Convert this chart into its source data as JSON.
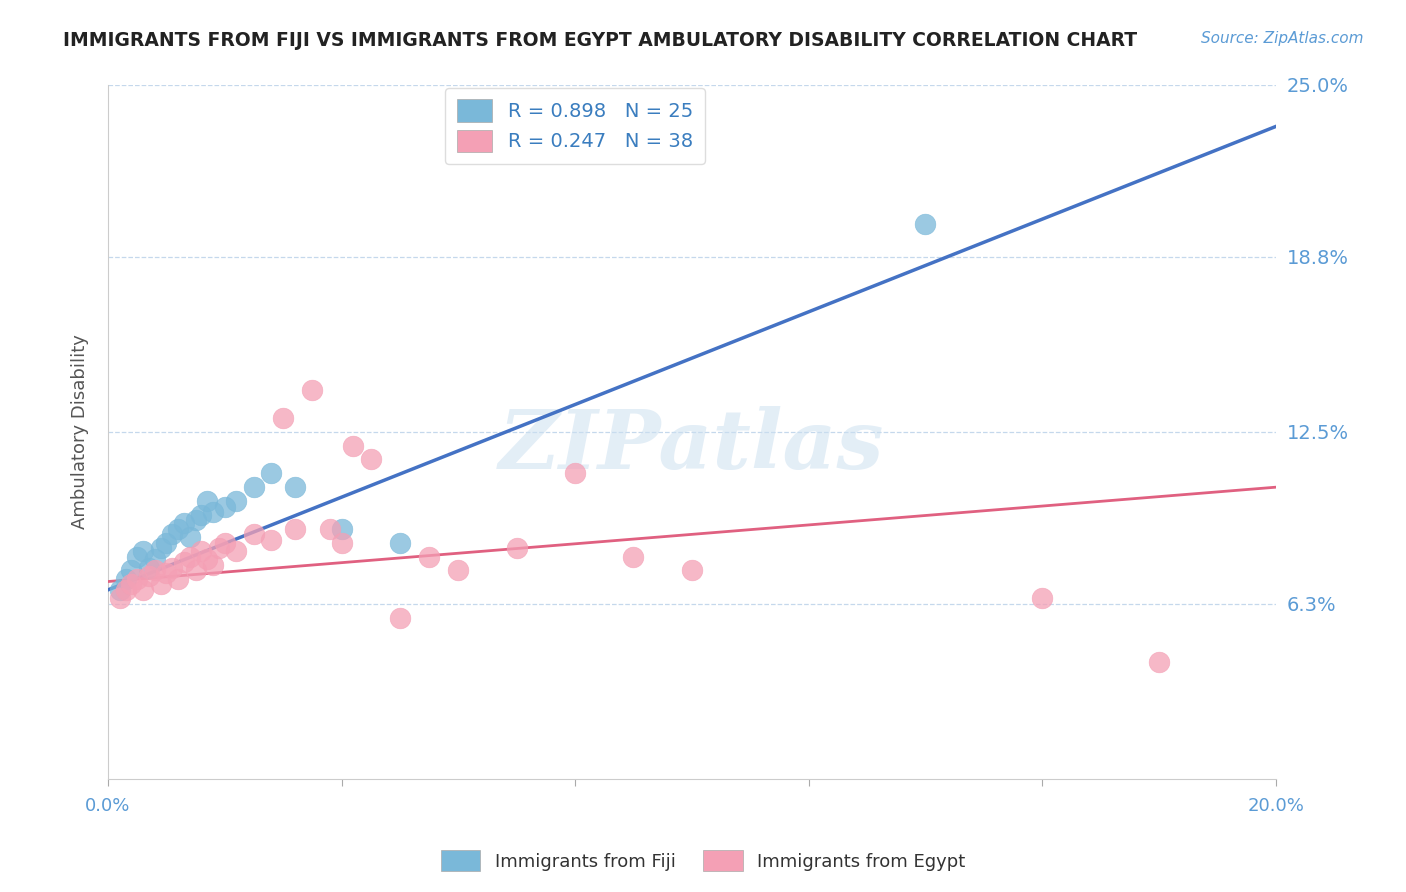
{
  "title": "IMMIGRANTS FROM FIJI VS IMMIGRANTS FROM EGYPT AMBULATORY DISABILITY CORRELATION CHART",
  "source_text": "Source: ZipAtlas.com",
  "ylabel": "Ambulatory Disability",
  "xlim": [
    0.0,
    0.2
  ],
  "ylim": [
    0.0,
    0.25
  ],
  "ytick_vals": [
    0.063,
    0.125,
    0.188,
    0.25
  ],
  "ytick_labels": [
    "6.3%",
    "12.5%",
    "18.8%",
    "25.0%"
  ],
  "xtick_vals": [
    0.0,
    0.04,
    0.08,
    0.12,
    0.16,
    0.2
  ],
  "xtick_labels": [
    "0.0%",
    "",
    "",
    "",
    "",
    "20.0%"
  ],
  "fiji_R": 0.898,
  "fiji_N": 25,
  "egypt_R": 0.247,
  "egypt_N": 38,
  "fiji_color": "#7ab8d9",
  "egypt_color": "#f4a0b5",
  "fiji_line_color": "#4472c4",
  "egypt_line_color": "#e06080",
  "watermark_text": "ZIPatlas",
  "legend_fiji_label": "R = 0.898   N = 25",
  "legend_egypt_label": "R = 0.247   N = 38",
  "legend_bottom_fiji": "Immigrants from Fiji",
  "legend_bottom_egypt": "Immigrants from Egypt",
  "fiji_scatter_x": [
    0.002,
    0.003,
    0.004,
    0.005,
    0.006,
    0.007,
    0.008,
    0.009,
    0.01,
    0.011,
    0.012,
    0.013,
    0.014,
    0.015,
    0.016,
    0.017,
    0.018,
    0.02,
    0.022,
    0.025,
    0.028,
    0.032,
    0.04,
    0.14,
    0.05
  ],
  "fiji_scatter_y": [
    0.068,
    0.072,
    0.075,
    0.08,
    0.082,
    0.076,
    0.079,
    0.083,
    0.085,
    0.088,
    0.09,
    0.092,
    0.087,
    0.093,
    0.095,
    0.1,
    0.096,
    0.098,
    0.1,
    0.105,
    0.11,
    0.105,
    0.09,
    0.2,
    0.085
  ],
  "egypt_scatter_x": [
    0.002,
    0.003,
    0.004,
    0.005,
    0.006,
    0.007,
    0.008,
    0.009,
    0.01,
    0.011,
    0.012,
    0.013,
    0.014,
    0.015,
    0.016,
    0.017,
    0.018,
    0.019,
    0.02,
    0.022,
    0.025,
    0.028,
    0.03,
    0.032,
    0.035,
    0.038,
    0.042,
    0.045,
    0.05,
    0.055,
    0.06,
    0.07,
    0.08,
    0.09,
    0.1,
    0.16,
    0.18,
    0.04
  ],
  "egypt_scatter_y": [
    0.065,
    0.068,
    0.07,
    0.072,
    0.068,
    0.073,
    0.075,
    0.07,
    0.074,
    0.076,
    0.072,
    0.078,
    0.08,
    0.075,
    0.082,
    0.079,
    0.077,
    0.083,
    0.085,
    0.082,
    0.088,
    0.086,
    0.13,
    0.09,
    0.14,
    0.09,
    0.12,
    0.115,
    0.058,
    0.08,
    0.075,
    0.083,
    0.11,
    0.08,
    0.075,
    0.065,
    0.042,
    0.085
  ],
  "fiji_line_x0": 0.0,
  "fiji_line_y0": 0.068,
  "fiji_line_x1": 0.2,
  "fiji_line_y1": 0.235,
  "egypt_line_x0": 0.0,
  "egypt_line_y0": 0.071,
  "egypt_line_x1": 0.2,
  "egypt_line_y1": 0.105
}
